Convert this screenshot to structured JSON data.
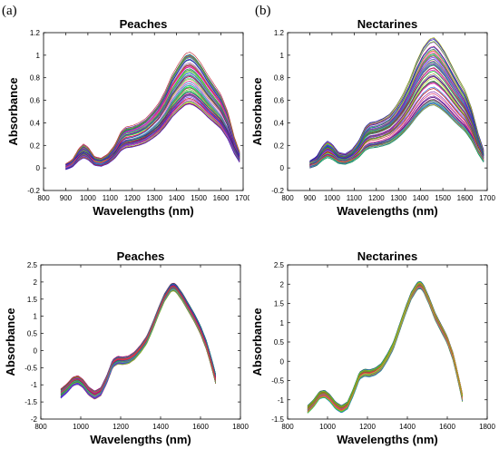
{
  "figure": {
    "panel_labels": [
      "(a)",
      "(b)"
    ]
  },
  "chart_data": [
    {
      "type": "line",
      "title": "Peaches",
      "xlabel": "Wavelengths (nm)",
      "ylabel": "Absorbance",
      "xlim": [
        800,
        1700
      ],
      "ylim": [
        -0.2,
        1.2
      ],
      "xticks": [
        800,
        900,
        1000,
        1100,
        1200,
        1300,
        1400,
        1500,
        1600,
        1700
      ],
      "yticks": [
        -0.2,
        0,
        0.2,
        0.4,
        0.6,
        0.8,
        1,
        1.2
      ],
      "xtick_labels": [
        "800",
        "900",
        "1000",
        "1100",
        "1200",
        "1300",
        "1400",
        "1500",
        "1600",
        "1700"
      ],
      "ytick_labels": [
        "-0.2",
        "0",
        "0.2",
        "0.4",
        "0.6",
        "0.8",
        "1",
        "1.2"
      ],
      "grid": false,
      "series_count": "many overlapping spectra (one per sample)",
      "mean_spectrum": {
        "x": [
          900,
          930,
          960,
          980,
          1000,
          1030,
          1060,
          1090,
          1120,
          1150,
          1170,
          1200,
          1230,
          1260,
          1290,
          1320,
          1350,
          1380,
          1410,
          1440,
          1460,
          1480,
          1510,
          1540,
          1570,
          1600,
          1630,
          1660,
          1690
        ],
        "y": [
          0.01,
          0.04,
          0.12,
          0.15,
          0.13,
          0.06,
          0.05,
          0.08,
          0.14,
          0.24,
          0.27,
          0.28,
          0.3,
          0.33,
          0.38,
          0.44,
          0.53,
          0.64,
          0.72,
          0.79,
          0.8,
          0.78,
          0.72,
          0.64,
          0.57,
          0.5,
          0.38,
          0.2,
          0.07
        ]
      },
      "spread": {
        "low_scale": 0.68,
        "high_scale": 1.28
      }
    },
    {
      "type": "line",
      "title": "Nectarines",
      "xlabel": "Wavelengths (nm)",
      "ylabel": "Absorbance",
      "xlim": [
        800,
        1700
      ],
      "ylim": [
        -0.2,
        1.2
      ],
      "xticks": [
        800,
        900,
        1000,
        1100,
        1200,
        1300,
        1400,
        1500,
        1600,
        1700
      ],
      "yticks": [
        -0.2,
        0,
        0.2,
        0.4,
        0.6,
        0.8,
        1,
        1.2
      ],
      "xtick_labels": [
        "800",
        "900",
        "1000",
        "1100",
        "1200",
        "1300",
        "1400",
        "1500",
        "1600",
        "1700"
      ],
      "ytick_labels": [
        "-0.2",
        "0",
        "0.2",
        "0.4",
        "0.6",
        "0.8",
        "1",
        "1.2"
      ],
      "grid": false,
      "series_count": "many overlapping spectra (one per sample)",
      "mean_spectrum": {
        "x": [
          900,
          930,
          960,
          980,
          1000,
          1030,
          1060,
          1090,
          1120,
          1150,
          1170,
          1200,
          1230,
          1260,
          1290,
          1320,
          1350,
          1380,
          1410,
          1440,
          1460,
          1480,
          1510,
          1540,
          1570,
          1600,
          1630,
          1660,
          1690
        ],
        "y": [
          0.03,
          0.06,
          0.14,
          0.17,
          0.15,
          0.09,
          0.08,
          0.11,
          0.17,
          0.27,
          0.3,
          0.31,
          0.33,
          0.36,
          0.42,
          0.5,
          0.6,
          0.72,
          0.82,
          0.88,
          0.89,
          0.86,
          0.79,
          0.7,
          0.61,
          0.53,
          0.4,
          0.22,
          0.08
        ]
      },
      "spread": {
        "low_scale": 0.62,
        "high_scale": 1.3
      }
    },
    {
      "type": "line",
      "title": "Peaches",
      "xlabel": "Wavelengths (nm)",
      "ylabel": "Absorbance",
      "xlim": [
        800,
        1800
      ],
      "ylim": [
        -2,
        2.5
      ],
      "xticks": [
        800,
        1000,
        1200,
        1400,
        1600,
        1800
      ],
      "yticks": [
        -2,
        -1.5,
        -1,
        -0.5,
        0,
        0.5,
        1,
        1.5,
        2,
        2.5
      ],
      "xtick_labels": [
        "800",
        "1000",
        "1200",
        "1400",
        "1600",
        "1800"
      ],
      "ytick_labels": [
        "-2",
        "-1.5",
        "-1",
        "-0.5",
        "0",
        "0.5",
        "1",
        "1.5",
        "2",
        "2.5"
      ],
      "grid": false,
      "series_count": "many overlapping spectra (one per sample)",
      "mean_spectrum": {
        "x": [
          900,
          930,
          960,
          985,
          1010,
          1040,
          1070,
          1100,
          1130,
          1160,
          1185,
          1210,
          1240,
          1270,
          1300,
          1330,
          1360,
          1390,
          1420,
          1450,
          1465,
          1480,
          1510,
          1540,
          1570,
          1600,
          1630,
          1655,
          1680
        ],
        "y": [
          -1.25,
          -1.1,
          -0.9,
          -0.85,
          -0.95,
          -1.18,
          -1.3,
          -1.2,
          -0.85,
          -0.38,
          -0.28,
          -0.3,
          -0.27,
          -0.15,
          0.05,
          0.3,
          0.7,
          1.15,
          1.55,
          1.82,
          1.86,
          1.8,
          1.55,
          1.25,
          0.95,
          0.6,
          0.15,
          -0.35,
          -0.92
        ]
      },
      "spread": {
        "amplitude": 0.14
      }
    },
    {
      "type": "line",
      "title": "Nectarines",
      "xlabel": "Wavelengths (nm)",
      "ylabel": "Absorbance",
      "xlim": [
        800,
        1800
      ],
      "ylim": [
        -1.5,
        2.5
      ],
      "xticks": [
        800,
        1000,
        1200,
        1400,
        1600,
        1800
      ],
      "yticks": [
        -1.5,
        -1,
        -0.5,
        0,
        0.5,
        1,
        1.5,
        2,
        2.5
      ],
      "xtick_labels": [
        "800",
        "1000",
        "1200",
        "1400",
        "1600",
        "1800"
      ],
      "ytick_labels": [
        "-1.5",
        "-1",
        "-0.5",
        "0",
        "0.5",
        "1",
        "1.5",
        "2",
        "2.5"
      ],
      "grid": false,
      "series_count": "many overlapping spectra (one per sample)",
      "mean_spectrum": {
        "x": [
          900,
          930,
          960,
          985,
          1010,
          1040,
          1070,
          1100,
          1130,
          1160,
          1185,
          1210,
          1240,
          1270,
          1300,
          1330,
          1360,
          1390,
          1420,
          1450,
          1465,
          1480,
          1510,
          1540,
          1570,
          1600,
          1630,
          1655,
          1680
        ],
        "y": [
          -1.25,
          -1.1,
          -0.88,
          -0.85,
          -0.95,
          -1.15,
          -1.25,
          -1.15,
          -0.8,
          -0.38,
          -0.3,
          -0.32,
          -0.27,
          -0.15,
          0.1,
          0.4,
          0.85,
          1.3,
          1.7,
          1.95,
          1.98,
          1.9,
          1.55,
          1.15,
          0.85,
          0.55,
          0.1,
          -0.45,
          -1.05
        ]
      },
      "spread": {
        "amplitude": 0.1
      }
    }
  ]
}
